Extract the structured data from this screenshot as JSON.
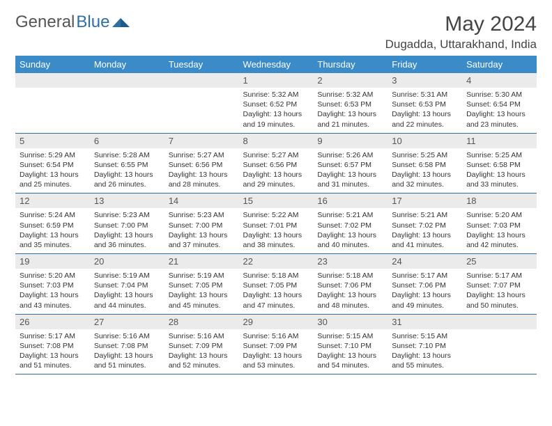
{
  "logo": {
    "text1": "General",
    "text2": "Blue"
  },
  "title": "May 2024",
  "location": "Dugadda, Uttarakhand, India",
  "colors": {
    "header_bg": "#3b8bc9",
    "header_text": "#ffffff",
    "daynum_bg": "#ebebeb",
    "border": "#2f6fa7",
    "logo_gray": "#555555",
    "logo_blue": "#2f6fa7"
  },
  "weekdays": [
    "Sunday",
    "Monday",
    "Tuesday",
    "Wednesday",
    "Thursday",
    "Friday",
    "Saturday"
  ],
  "weeks": [
    [
      null,
      null,
      null,
      {
        "n": "1",
        "sr": "5:32 AM",
        "ss": "6:52 PM",
        "dl": "13 hours and 19 minutes."
      },
      {
        "n": "2",
        "sr": "5:32 AM",
        "ss": "6:53 PM",
        "dl": "13 hours and 21 minutes."
      },
      {
        "n": "3",
        "sr": "5:31 AM",
        "ss": "6:53 PM",
        "dl": "13 hours and 22 minutes."
      },
      {
        "n": "4",
        "sr": "5:30 AM",
        "ss": "6:54 PM",
        "dl": "13 hours and 23 minutes."
      }
    ],
    [
      {
        "n": "5",
        "sr": "5:29 AM",
        "ss": "6:54 PM",
        "dl": "13 hours and 25 minutes."
      },
      {
        "n": "6",
        "sr": "5:28 AM",
        "ss": "6:55 PM",
        "dl": "13 hours and 26 minutes."
      },
      {
        "n": "7",
        "sr": "5:27 AM",
        "ss": "6:56 PM",
        "dl": "13 hours and 28 minutes."
      },
      {
        "n": "8",
        "sr": "5:27 AM",
        "ss": "6:56 PM",
        "dl": "13 hours and 29 minutes."
      },
      {
        "n": "9",
        "sr": "5:26 AM",
        "ss": "6:57 PM",
        "dl": "13 hours and 31 minutes."
      },
      {
        "n": "10",
        "sr": "5:25 AM",
        "ss": "6:58 PM",
        "dl": "13 hours and 32 minutes."
      },
      {
        "n": "11",
        "sr": "5:25 AM",
        "ss": "6:58 PM",
        "dl": "13 hours and 33 minutes."
      }
    ],
    [
      {
        "n": "12",
        "sr": "5:24 AM",
        "ss": "6:59 PM",
        "dl": "13 hours and 35 minutes."
      },
      {
        "n": "13",
        "sr": "5:23 AM",
        "ss": "7:00 PM",
        "dl": "13 hours and 36 minutes."
      },
      {
        "n": "14",
        "sr": "5:23 AM",
        "ss": "7:00 PM",
        "dl": "13 hours and 37 minutes."
      },
      {
        "n": "15",
        "sr": "5:22 AM",
        "ss": "7:01 PM",
        "dl": "13 hours and 38 minutes."
      },
      {
        "n": "16",
        "sr": "5:21 AM",
        "ss": "7:02 PM",
        "dl": "13 hours and 40 minutes."
      },
      {
        "n": "17",
        "sr": "5:21 AM",
        "ss": "7:02 PM",
        "dl": "13 hours and 41 minutes."
      },
      {
        "n": "18",
        "sr": "5:20 AM",
        "ss": "7:03 PM",
        "dl": "13 hours and 42 minutes."
      }
    ],
    [
      {
        "n": "19",
        "sr": "5:20 AM",
        "ss": "7:03 PM",
        "dl": "13 hours and 43 minutes."
      },
      {
        "n": "20",
        "sr": "5:19 AM",
        "ss": "7:04 PM",
        "dl": "13 hours and 44 minutes."
      },
      {
        "n": "21",
        "sr": "5:19 AM",
        "ss": "7:05 PM",
        "dl": "13 hours and 45 minutes."
      },
      {
        "n": "22",
        "sr": "5:18 AM",
        "ss": "7:05 PM",
        "dl": "13 hours and 47 minutes."
      },
      {
        "n": "23",
        "sr": "5:18 AM",
        "ss": "7:06 PM",
        "dl": "13 hours and 48 minutes."
      },
      {
        "n": "24",
        "sr": "5:17 AM",
        "ss": "7:06 PM",
        "dl": "13 hours and 49 minutes."
      },
      {
        "n": "25",
        "sr": "5:17 AM",
        "ss": "7:07 PM",
        "dl": "13 hours and 50 minutes."
      }
    ],
    [
      {
        "n": "26",
        "sr": "5:17 AM",
        "ss": "7:08 PM",
        "dl": "13 hours and 51 minutes."
      },
      {
        "n": "27",
        "sr": "5:16 AM",
        "ss": "7:08 PM",
        "dl": "13 hours and 51 minutes."
      },
      {
        "n": "28",
        "sr": "5:16 AM",
        "ss": "7:09 PM",
        "dl": "13 hours and 52 minutes."
      },
      {
        "n": "29",
        "sr": "5:16 AM",
        "ss": "7:09 PM",
        "dl": "13 hours and 53 minutes."
      },
      {
        "n": "30",
        "sr": "5:15 AM",
        "ss": "7:10 PM",
        "dl": "13 hours and 54 minutes."
      },
      {
        "n": "31",
        "sr": "5:15 AM",
        "ss": "7:10 PM",
        "dl": "13 hours and 55 minutes."
      },
      null
    ]
  ],
  "labels": {
    "sunrise": "Sunrise:",
    "sunset": "Sunset:",
    "daylight": "Daylight:"
  }
}
